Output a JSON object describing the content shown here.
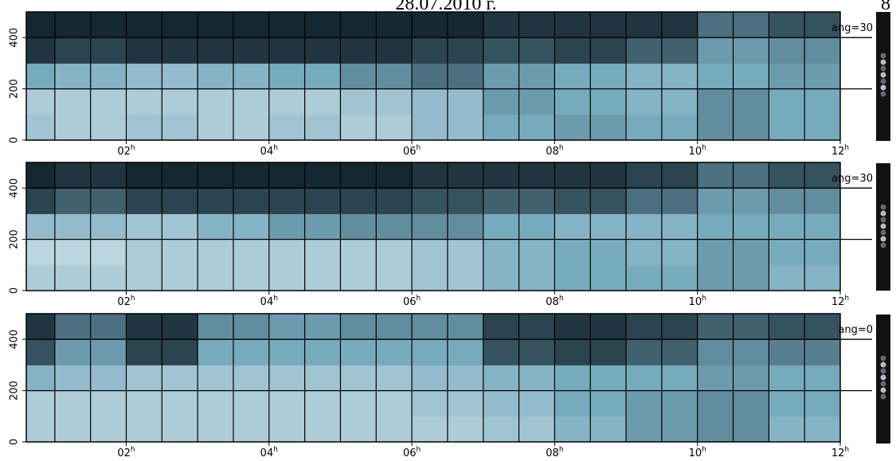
{
  "header": {
    "title": "28.07.2010 г.",
    "page_number": "8"
  },
  "chart_data": [
    {
      "type": "heatmap",
      "annotation": "ang=30",
      "xlim": [
        0.6,
        12
      ],
      "ylim": [
        0,
        500
      ],
      "x_unit": "h",
      "xticks": [
        {
          "value": 2,
          "label": "02"
        },
        {
          "value": 4,
          "label": "04"
        },
        {
          "value": 6,
          "label": "06"
        },
        {
          "value": 8,
          "label": "08"
        },
        {
          "value": 10,
          "label": "10"
        },
        {
          "value": 12,
          "label": "12"
        }
      ],
      "yticks": [
        0,
        200,
        400
      ],
      "grid": true,
      "xgrid_step": 0.5,
      "x_bins": [
        0.6,
        1,
        2,
        3,
        4,
        5,
        6,
        7,
        8,
        9,
        10,
        11,
        12
      ],
      "y_bins": [
        0,
        100,
        200,
        300,
        400,
        500
      ],
      "z": [
        [
          0.35,
          0.3,
          0.35,
          0.3,
          0.35,
          0.3,
          0.4,
          0.5,
          0.55,
          0.5,
          0.6,
          0.5
        ],
        [
          0.3,
          0.3,
          0.3,
          0.3,
          0.3,
          0.35,
          0.4,
          0.55,
          0.5,
          0.45,
          0.6,
          0.5
        ],
        [
          0.5,
          0.45,
          0.4,
          0.45,
          0.5,
          0.6,
          0.7,
          0.55,
          0.5,
          0.45,
          0.5,
          0.55
        ],
        [
          0.9,
          0.85,
          0.9,
          0.9,
          0.9,
          0.9,
          0.85,
          0.8,
          0.85,
          0.75,
          0.55,
          0.6
        ],
        [
          0.95,
          0.95,
          0.95,
          0.95,
          0.95,
          0.95,
          0.95,
          0.9,
          0.9,
          0.9,
          0.7,
          0.8
        ]
      ]
    },
    {
      "type": "heatmap",
      "annotation": "ang=30",
      "xlim": [
        0.6,
        12
      ],
      "ylim": [
        0,
        500
      ],
      "x_unit": "h",
      "xticks": [
        {
          "value": 2,
          "label": "02"
        },
        {
          "value": 4,
          "label": "04"
        },
        {
          "value": 6,
          "label": "06"
        },
        {
          "value": 8,
          "label": "08"
        },
        {
          "value": 10,
          "label": "10"
        },
        {
          "value": 12,
          "label": "12"
        }
      ],
      "yticks": [
        0,
        200,
        400
      ],
      "grid": true,
      "xgrid_step": 0.5,
      "x_bins": [
        0.6,
        1,
        2,
        3,
        4,
        5,
        6,
        7,
        8,
        9,
        10,
        11,
        12
      ],
      "y_bins": [
        0,
        100,
        200,
        300,
        400,
        500
      ],
      "z": [
        [
          0.3,
          0.3,
          0.3,
          0.3,
          0.3,
          0.3,
          0.35,
          0.45,
          0.5,
          0.5,
          0.55,
          0.45
        ],
        [
          0.25,
          0.25,
          0.3,
          0.3,
          0.3,
          0.3,
          0.35,
          0.45,
          0.5,
          0.45,
          0.55,
          0.5
        ],
        [
          0.4,
          0.4,
          0.35,
          0.45,
          0.55,
          0.6,
          0.6,
          0.5,
          0.45,
          0.45,
          0.5,
          0.5
        ],
        [
          0.85,
          0.75,
          0.85,
          0.85,
          0.85,
          0.85,
          0.8,
          0.75,
          0.8,
          0.7,
          0.55,
          0.6
        ],
        [
          0.95,
          0.9,
          0.95,
          0.95,
          0.95,
          0.95,
          0.9,
          0.9,
          0.9,
          0.85,
          0.7,
          0.8
        ]
      ]
    },
    {
      "type": "heatmap",
      "annotation": "ang=0",
      "xlim": [
        0.6,
        12
      ],
      "ylim": [
        0,
        500
      ],
      "x_unit": "h",
      "xticks": [
        {
          "value": 2,
          "label": "02"
        },
        {
          "value": 4,
          "label": "04"
        },
        {
          "value": 6,
          "label": "06"
        },
        {
          "value": 8,
          "label": "08"
        },
        {
          "value": 10,
          "label": "10"
        },
        {
          "value": 12,
          "label": "12"
        }
      ],
      "yticks": [
        0,
        200,
        400
      ],
      "grid": true,
      "xgrid_step": 0.5,
      "x_bins": [
        0.6,
        1,
        2,
        3,
        4,
        5,
        6,
        7,
        8,
        9,
        10,
        11,
        12
      ],
      "y_bins": [
        0,
        100,
        200,
        300,
        400,
        500
      ],
      "z": [
        [
          0.3,
          0.3,
          0.3,
          0.3,
          0.3,
          0.3,
          0.3,
          0.35,
          0.45,
          0.55,
          0.6,
          0.45
        ],
        [
          0.3,
          0.3,
          0.3,
          0.3,
          0.3,
          0.3,
          0.35,
          0.4,
          0.5,
          0.55,
          0.6,
          0.5
        ],
        [
          0.45,
          0.4,
          0.35,
          0.35,
          0.35,
          0.35,
          0.4,
          0.45,
          0.5,
          0.5,
          0.55,
          0.5
        ],
        [
          0.8,
          0.55,
          0.85,
          0.5,
          0.5,
          0.5,
          0.5,
          0.8,
          0.85,
          0.75,
          0.6,
          0.65
        ],
        [
          0.9,
          0.7,
          0.9,
          0.6,
          0.55,
          0.6,
          0.6,
          0.85,
          0.9,
          0.85,
          0.75,
          0.8
        ]
      ]
    }
  ]
}
